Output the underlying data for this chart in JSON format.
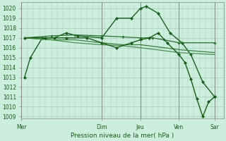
{
  "bg_color": "#cceedd",
  "grid_color": "#aaccbb",
  "dark_green": "#1a5c1a",
  "xlabel": "Pression niveau de la mer( hPa )",
  "ylim_min": 1008.8,
  "ylim_max": 1020.6,
  "ytick_vals": [
    1009,
    1010,
    1011,
    1012,
    1013,
    1014,
    1015,
    1016,
    1017,
    1018,
    1019,
    1020
  ],
  "day_labels": [
    "Mer",
    "Dim",
    "Jeu",
    "Ven",
    "Sar"
  ],
  "day_x": [
    0,
    13.5,
    20.0,
    26.5,
    32.5
  ],
  "xmin": 0,
  "xmax": 34,
  "lines": [
    {
      "x": [
        0.5,
        1.5,
        3.5,
        5.5,
        7.5,
        9.5,
        13.5,
        16.0,
        18.5,
        20.0,
        21.0,
        23.0,
        25.0,
        27.0,
        28.5,
        30.5,
        32.5
      ],
      "y": [
        1013,
        1015,
        1017,
        1017,
        1017.5,
        1017.2,
        1017.0,
        1019.0,
        1019.0,
        1020.0,
        1020.2,
        1019.5,
        1017.5,
        1016.5,
        1015.3,
        1012.5,
        1011.0
      ],
      "color": "#1a6020",
      "lw": 1.0,
      "marker": "D",
      "ms": 2.2
    },
    {
      "x": [
        0.5,
        5.0,
        9.0,
        13.5,
        17.0,
        20.0,
        22.0,
        24.0,
        26.5,
        32.5
      ],
      "y": [
        1017,
        1017.2,
        1017.3,
        1017.2,
        1017.1,
        1017.0,
        1017.0,
        1016.8,
        1016.5,
        1016.5
      ],
      "color": "#2a7030",
      "lw": 0.9,
      "marker": "D",
      "ms": 1.8
    },
    {
      "x": [
        0.5,
        5.0,
        9.0,
        13.5,
        17.0,
        20.0,
        24.0,
        26.5,
        32.5
      ],
      "y": [
        1017,
        1016.8,
        1016.8,
        1016.5,
        1016.3,
        1016.3,
        1016.0,
        1015.8,
        1015.5
      ],
      "color": "#3a8040",
      "lw": 0.9,
      "marker": null,
      "ms": 0
    },
    {
      "x": [
        0.5,
        5.0,
        9.0,
        13.5,
        17.0,
        20.0,
        24.0,
        26.5,
        32.5
      ],
      "y": [
        1017,
        1016.8,
        1016.5,
        1016.3,
        1016.2,
        1016.0,
        1015.7,
        1015.5,
        1015.3
      ],
      "color": "#4a9050",
      "lw": 0.9,
      "marker": null,
      "ms": 0
    },
    {
      "x": [
        0.5,
        4.0,
        7.5,
        11.0,
        13.5,
        16.0,
        18.5,
        20.0,
        21.5,
        23.0,
        24.5,
        26.5,
        27.5,
        28.5,
        29.5,
        30.5,
        31.5,
        32.5
      ],
      "y": [
        1017,
        1017,
        1017,
        1017,
        1016.5,
        1016.0,
        1016.5,
        1016.8,
        1017.0,
        1017.5,
        1016.5,
        1015.3,
        1014.5,
        1012.8,
        1010.8,
        1009.0,
        1010.5,
        1011.0
      ],
      "color": "#1a5c1a",
      "lw": 1.0,
      "marker": "D",
      "ms": 2.2
    }
  ],
  "vline_color": "#666666",
  "vline_lw": 0.5,
  "ylabel_fontsize": 5.5,
  "xlabel_fontsize": 6.5,
  "xtick_fontsize": 5.5
}
